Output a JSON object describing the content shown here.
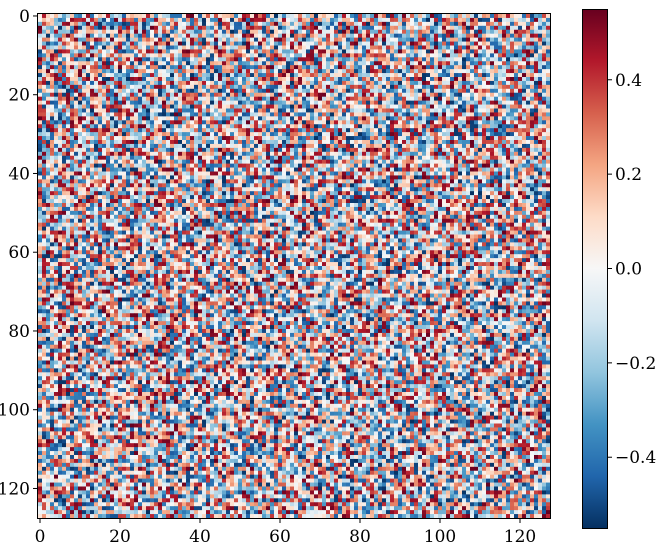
{
  "chart_data": {
    "type": "heatmap",
    "title": "",
    "xlabel": "",
    "ylabel": "",
    "rows": 128,
    "cols": 128,
    "xlim": [
      -0.5,
      127.5
    ],
    "ylim": [
      127.5,
      -0.5
    ],
    "x_ticks": [
      {
        "value": 0,
        "label": "0"
      },
      {
        "value": 20,
        "label": "20"
      },
      {
        "value": 40,
        "label": "40"
      },
      {
        "value": 60,
        "label": "60"
      },
      {
        "value": 80,
        "label": "80"
      },
      {
        "value": 100,
        "label": "100"
      },
      {
        "value": 120,
        "label": "120"
      }
    ],
    "y_ticks": [
      {
        "value": 0,
        "label": "0"
      },
      {
        "value": 20,
        "label": "20"
      },
      {
        "value": 40,
        "label": "40"
      },
      {
        "value": 60,
        "label": "60"
      },
      {
        "value": 80,
        "label": "80"
      },
      {
        "value": 100,
        "label": "100"
      },
      {
        "value": 120,
        "label": "120"
      }
    ],
    "value_range": [
      -0.55,
      0.55
    ],
    "colormap": "RdBu_r",
    "colormap_stops": [
      "#053061",
      "#2166ac",
      "#4393c3",
      "#92c5de",
      "#d1e5f0",
      "#f7f7f7",
      "#fddbc7",
      "#f4a582",
      "#d6604d",
      "#b2182b",
      "#67001f"
    ],
    "distribution": "uniform random noise between -0.55 and 0.55",
    "grid": false,
    "colorbar": {
      "range": [
        -0.55,
        0.55
      ],
      "ticks": [
        {
          "value": 0.4,
          "label": "0.4"
        },
        {
          "value": 0.2,
          "label": "0.2"
        },
        {
          "value": 0.0,
          "label": "0.0"
        },
        {
          "value": -0.2,
          "label": "−0.2"
        },
        {
          "value": -0.4,
          "label": "−0.4"
        }
      ]
    }
  }
}
